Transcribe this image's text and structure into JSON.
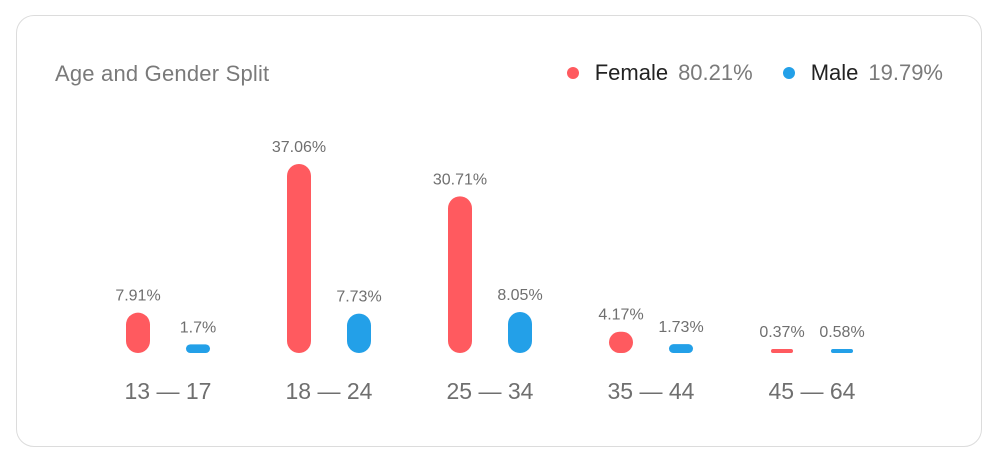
{
  "title": "Age and Gender Split",
  "legend": [
    {
      "name": "Female",
      "value": "80.21%",
      "color": "#ff5a5f"
    },
    {
      "name": "Male",
      "value": "19.79%",
      "color": "#23a0e8"
    }
  ],
  "chart_data": {
    "type": "bar",
    "title": "Age and Gender Split",
    "categories": [
      "13 — 17",
      "18 — 24",
      "25 — 34",
      "35 — 44",
      "45 — 64"
    ],
    "series": [
      {
        "name": "Female",
        "color": "#ff5a5f",
        "values": [
          7.91,
          37.06,
          30.71,
          4.17,
          0.37
        ],
        "labels": [
          "7.91%",
          "37.06%",
          "30.71%",
          "4.17%",
          "0.37%"
        ]
      },
      {
        "name": "Male",
        "color": "#23a0e8",
        "values": [
          1.7,
          7.73,
          8.05,
          1.73,
          0.58
        ],
        "labels": [
          "1.7%",
          "7.73%",
          "8.05%",
          "1.73%",
          "0.58%"
        ]
      }
    ],
    "legend_position": "top-right",
    "grid": false
  }
}
